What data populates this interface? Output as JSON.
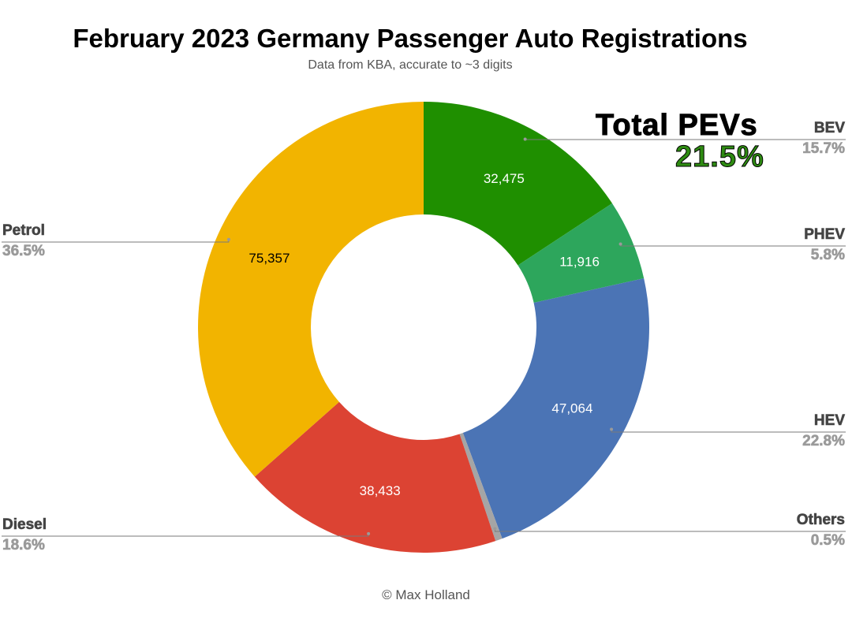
{
  "header": {
    "title": "February 2023 Germany Passenger Auto Registrations",
    "subtitle": "Data from KBA, accurate to ~3 digits"
  },
  "callout": {
    "title": "Total PEVs",
    "value": "21.5%",
    "value_color": "#2e8b12"
  },
  "footer": {
    "credit": "© Max Holland"
  },
  "chart_data": {
    "type": "pie",
    "donut": true,
    "title": "February 2023 Germany Passenger Auto Registrations",
    "subtitle": "Data from KBA, accurate to ~3 digits",
    "slices": [
      {
        "name": "BEV",
        "value": 32475,
        "value_label": "32,475",
        "percent_label": "15.7%",
        "color": "#1f8f00"
      },
      {
        "name": "PHEV",
        "value": 11916,
        "value_label": "11,916",
        "percent_label": "5.8%",
        "color": "#2da65c"
      },
      {
        "name": "HEV",
        "value": 47064,
        "value_label": "47,064",
        "percent_label": "22.8%",
        "color": "#4b74b5"
      },
      {
        "name": "Others",
        "value": 1030,
        "value_label": "",
        "percent_label": "0.5%",
        "color": "#a5a5a5"
      },
      {
        "name": "Diesel",
        "value": 38433,
        "value_label": "38,433",
        "percent_label": "18.6%",
        "color": "#dc4333"
      },
      {
        "name": "Petrol",
        "value": 75357,
        "value_label": "75,357",
        "percent_label": "36.5%",
        "color": "#f2b400"
      }
    ]
  }
}
